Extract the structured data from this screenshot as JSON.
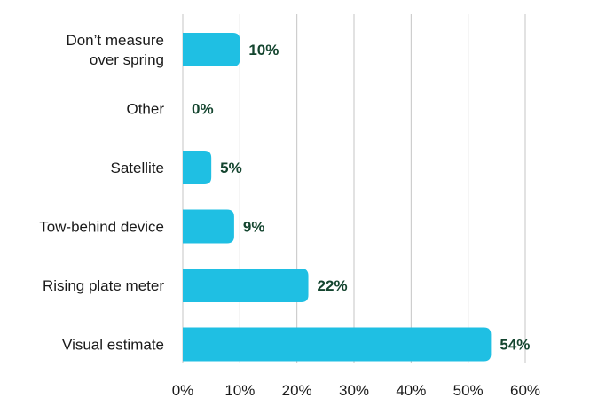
{
  "chart_data": {
    "type": "bar",
    "orientation": "horizontal",
    "categories": [
      [
        "Don’t measure",
        "over spring"
      ],
      [
        "Other"
      ],
      [
        "Satellite"
      ],
      [
        "Tow-behind device"
      ],
      [
        "Rising plate meter"
      ],
      [
        "Visual estimate"
      ]
    ],
    "values": [
      10,
      0,
      5,
      9,
      22,
      54
    ],
    "data_labels": [
      "10%",
      "0%",
      "5%",
      "9%",
      "22%",
      "54%"
    ],
    "xlim": [
      0,
      60
    ],
    "x_ticks": [
      0,
      10,
      20,
      30,
      40,
      50,
      60
    ],
    "x_tick_labels": [
      "0%",
      "10%",
      "20%",
      "30%",
      "40%",
      "50%",
      "60%"
    ],
    "grid": "vertical",
    "legend": "none",
    "bar_color": "#1fbfe3",
    "label_color": "#14452f"
  }
}
